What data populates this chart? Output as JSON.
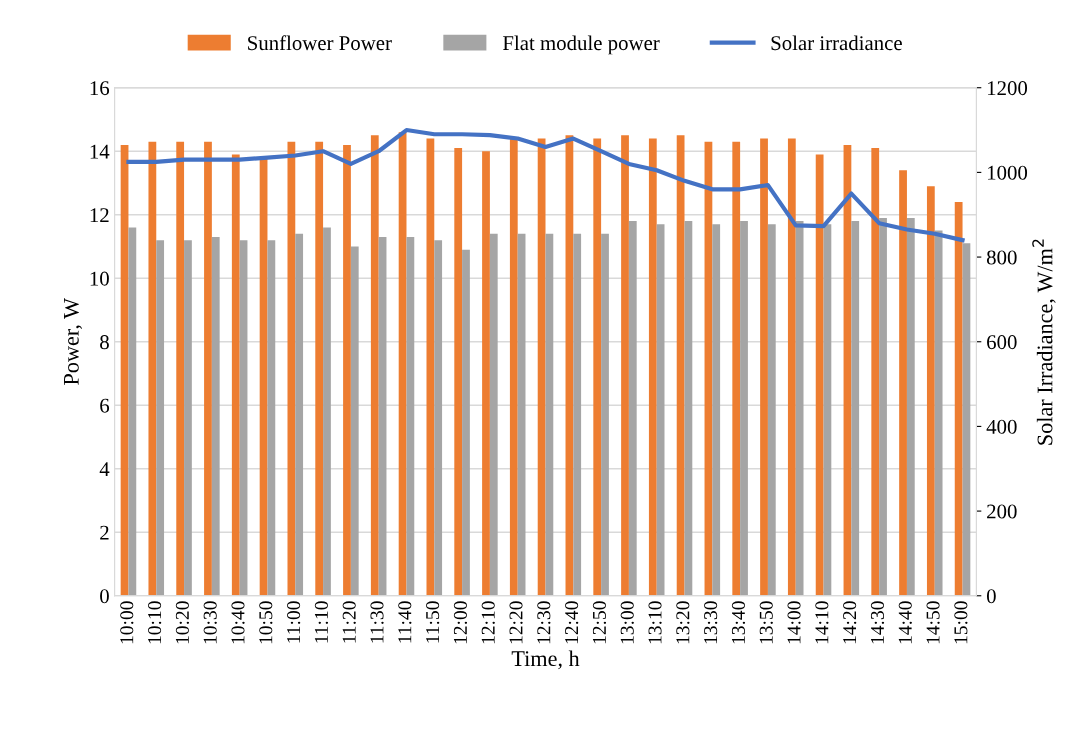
{
  "chart_data": {
    "type": "bar",
    "xlabel": "Time, h",
    "ylabel": "Power, W",
    "y2label": "Solar Irradiance, W/m$^{2}$",
    "categories": [
      "10:00",
      "10:10",
      "10:20",
      "10:30",
      "10:40",
      "10:50",
      "11:00",
      "11:10",
      "11:20",
      "11:30",
      "11:40",
      "11:50",
      "12:00",
      "12:10",
      "12:20",
      "12:30",
      "12:40",
      "12:50",
      "13:00",
      "13:10",
      "13:20",
      "13:30",
      "13:40",
      "13:50",
      "14:00",
      "14:10",
      "14:20",
      "14:30",
      "14:40",
      "14:50",
      "15:00"
    ],
    "series": [
      {
        "name": "Sunflower Power",
        "color": "#ed7d31",
        "values": [
          14.2,
          14.3,
          14.3,
          14.3,
          13.9,
          13.8,
          14.3,
          14.3,
          14.2,
          14.5,
          14.6,
          14.4,
          14.1,
          14.0,
          14.4,
          14.4,
          14.5,
          14.4,
          14.5,
          14.4,
          14.5,
          14.3,
          14.3,
          14.4,
          14.4,
          13.9,
          14.2,
          14.1,
          13.4,
          12.9,
          12.4
        ]
      },
      {
        "name": "Flat module power",
        "color": "#a5a5a5",
        "values": [
          11.6,
          11.2,
          11.2,
          11.3,
          11.2,
          11.2,
          11.4,
          11.6,
          11.0,
          11.3,
          11.3,
          11.2,
          10.9,
          11.4,
          11.4,
          11.4,
          11.4,
          11.4,
          11.8,
          11.7,
          11.8,
          11.7,
          11.8,
          11.7,
          11.8,
          11.7,
          11.8,
          11.9,
          11.9,
          11.5,
          11.1
        ]
      },
      {
        "name": "Solar irradiance",
        "color": "#4472c4",
        "type": "line",
        "axis": "y2",
        "values": [
          1025,
          1025,
          1030,
          1030,
          1030,
          1035,
          1040,
          1050,
          1020,
          1050,
          1100,
          1090,
          1090,
          1088,
          1080,
          1060,
          1080,
          1050,
          1020,
          1005,
          980,
          960,
          960,
          970,
          875,
          873,
          950,
          880,
          865,
          855,
          840
        ]
      }
    ],
    "ylim": [
      0,
      16
    ],
    "yticks": [
      0,
      2,
      4,
      6,
      8,
      10,
      12,
      14,
      16
    ],
    "y2lim": [
      0,
      1200
    ],
    "y2ticks": [
      0,
      200,
      400,
      600,
      800,
      1000,
      1200
    ],
    "grid": "y",
    "legend": "top",
    "marker": "none"
  }
}
